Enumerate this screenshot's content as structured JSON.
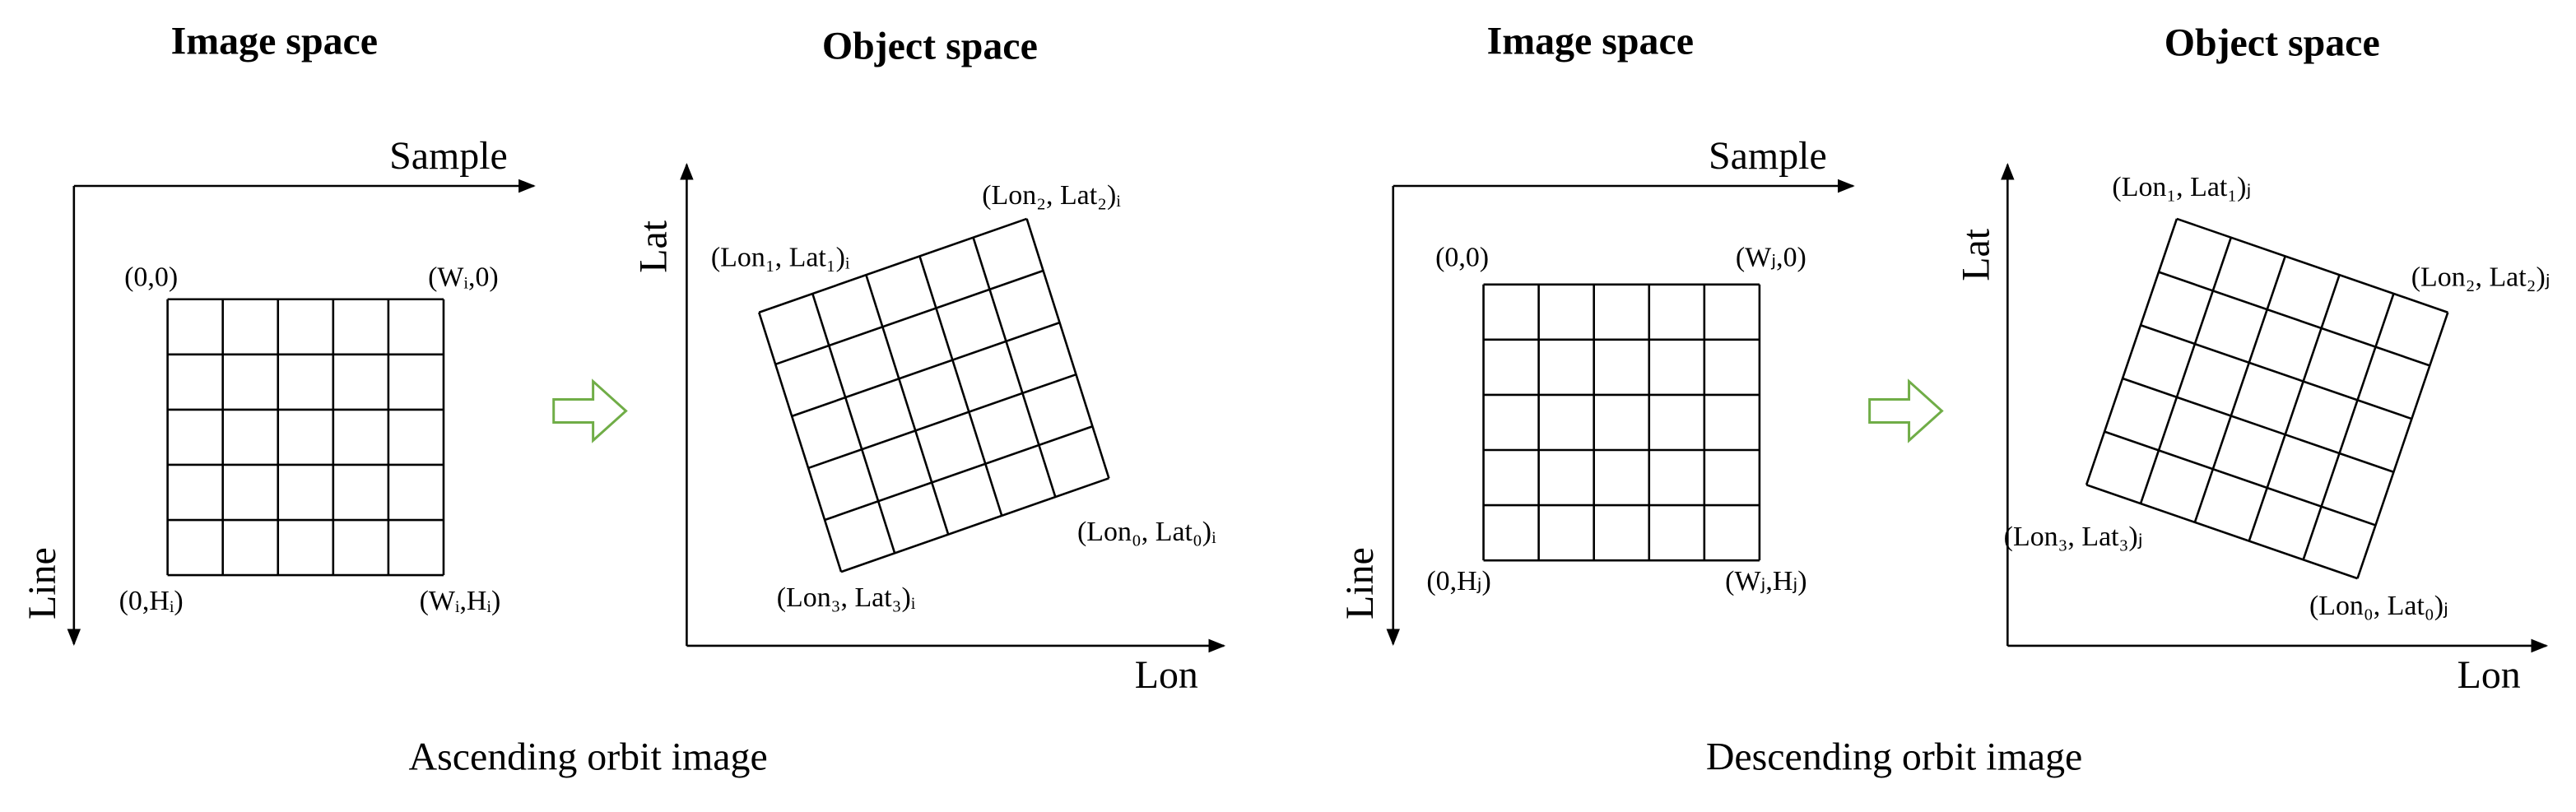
{
  "panels": [
    {
      "image_space_title": "Image space",
      "object_space_title": "Object space",
      "image_axes": {
        "sample": "Sample",
        "line": "Line"
      },
      "image_corners": [
        "(0,0)",
        "(Wᵢ,0)",
        "(0,Hᵢ)",
        "(Wᵢ,Hᵢ)"
      ],
      "object_axes": {
        "lat": "Lat",
        "lon": "Lon"
      },
      "object_corners": [
        "(Lon₁, Lat₁)ᵢ",
        "(Lon₂, Lat₂)ᵢ",
        "(Lon₃, Lat₃)ᵢ",
        "(Lon₀, Lat₀)ᵢ"
      ],
      "caption": "Ascending orbit image"
    },
    {
      "image_space_title": "Image space",
      "object_space_title": "Object space",
      "image_axes": {
        "sample": "Sample",
        "line": "Line"
      },
      "image_corners": [
        "(0,0)",
        "(Wⱼ,0)",
        "(0,Hⱼ)",
        "(Wⱼ,Hⱼ)"
      ],
      "object_axes": {
        "lat": "Lat",
        "lon": "Lon"
      },
      "object_corners": [
        "(Lon₁, Lat₁)ⱼ",
        "(Lon₂, Lat₂)ⱼ",
        "(Lon₃, Lat₃)ⱼ",
        "(Lon₀, Lat₀)ⱼ"
      ],
      "caption": "Descending orbit image"
    }
  ]
}
